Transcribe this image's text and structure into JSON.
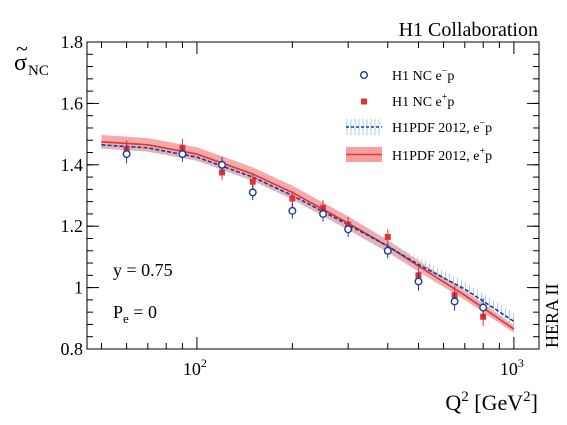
{
  "chart_data": {
    "type": "scatter",
    "title": "H1 Collaboration",
    "side_label": "HERA II",
    "ylabel_main": "σ",
    "ylabel_tilde": "~",
    "ylabel_sub": "NC",
    "xlabel_base": "Q",
    "xlabel_sup": "2",
    "xlabel_unit_open": "[GeV",
    "xlabel_unit_sup": "2",
    "xlabel_unit_close": "]",
    "xscale": "log",
    "xlim": [
      45,
      1200
    ],
    "ylim": [
      0.8,
      1.8
    ],
    "yticks": [
      0.8,
      1.0,
      1.2,
      1.4,
      1.6,
      1.8
    ],
    "ytick_labels": [
      "0.8",
      "1",
      "1.2",
      "1.4",
      "1.6",
      "1.8"
    ],
    "xticks": [
      100,
      1000
    ],
    "xtick_labels": [
      {
        "base": "10",
        "exp": "2"
      },
      {
        "base": "10",
        "exp": "3"
      }
    ],
    "annotations": {
      "y_text": "y  = 0.75",
      "pe_base": "P",
      "pe_sub": "e",
      "pe_rest": " = 0"
    },
    "legend_position": "top-right",
    "series": [
      {
        "name": "H1 NC e⁻p",
        "legend_base": "H1 NC e",
        "legend_sup": "−",
        "legend_rest": "p",
        "marker": "open-circle",
        "color": "#1f3a93",
        "points": [
          {
            "x": 60,
            "y": 1.435,
            "err": 0.03
          },
          {
            "x": 90,
            "y": 1.435,
            "err": 0.025
          },
          {
            "x": 120,
            "y": 1.4,
            "err": 0.025
          },
          {
            "x": 150,
            "y": 1.31,
            "err": 0.025
          },
          {
            "x": 200,
            "y": 1.25,
            "err": 0.025
          },
          {
            "x": 250,
            "y": 1.24,
            "err": 0.025
          },
          {
            "x": 300,
            "y": 1.19,
            "err": 0.025
          },
          {
            "x": 400,
            "y": 1.12,
            "err": 0.025
          },
          {
            "x": 500,
            "y": 1.02,
            "err": 0.03
          },
          {
            "x": 650,
            "y": 0.955,
            "err": 0.03
          },
          {
            "x": 800,
            "y": 0.935,
            "err": 0.03
          }
        ]
      },
      {
        "name": "H1 NC e⁺p",
        "legend_base": "H1 NC e",
        "legend_sup": "+",
        "legend_rest": "p",
        "marker": "filled-square",
        "color": "#e63232",
        "points": [
          {
            "x": 60,
            "y": 1.45,
            "err": 0.03
          },
          {
            "x": 90,
            "y": 1.455,
            "err": 0.03
          },
          {
            "x": 120,
            "y": 1.375,
            "err": 0.025
          },
          {
            "x": 150,
            "y": 1.345,
            "err": 0.025
          },
          {
            "x": 200,
            "y": 1.29,
            "err": 0.025
          },
          {
            "x": 250,
            "y": 1.26,
            "err": 0.025
          },
          {
            "x": 300,
            "y": 1.205,
            "err": 0.025
          },
          {
            "x": 400,
            "y": 1.165,
            "err": 0.025
          },
          {
            "x": 500,
            "y": 1.04,
            "err": 0.03
          },
          {
            "x": 650,
            "y": 0.975,
            "err": 0.03
          },
          {
            "x": 800,
            "y": 0.905,
            "err": 0.03
          }
        ]
      }
    ],
    "bands": [
      {
        "name": "H1PDF 2012, e⁻p",
        "legend_base": "H1PDF 2012, e",
        "legend_sup": "−",
        "legend_rest": "p",
        "style": "dashed-hatched",
        "color": "#1f3a93",
        "band_color": "#a9cfee",
        "points": [
          {
            "x": 50,
            "y": 1.465,
            "w": 0.012
          },
          {
            "x": 70,
            "y": 1.455,
            "w": 0.012
          },
          {
            "x": 100,
            "y": 1.425,
            "w": 0.013
          },
          {
            "x": 150,
            "y": 1.36,
            "w": 0.014
          },
          {
            "x": 200,
            "y": 1.3,
            "w": 0.015
          },
          {
            "x": 300,
            "y": 1.205,
            "w": 0.017
          },
          {
            "x": 400,
            "y": 1.135,
            "w": 0.019
          },
          {
            "x": 500,
            "y": 1.075,
            "w": 0.021
          },
          {
            "x": 700,
            "y": 0.995,
            "w": 0.024
          },
          {
            "x": 1000,
            "y": 0.89,
            "w": 0.027
          }
        ]
      },
      {
        "name": "H1PDF 2012, e⁺p",
        "legend_base": "H1PDF 2012, e",
        "legend_sup": "+",
        "legend_rest": "p",
        "style": "solid-filled",
        "color": "#e63232",
        "band_color": "#f5a0a0",
        "points": [
          {
            "x": 50,
            "y": 1.475,
            "w": 0.022
          },
          {
            "x": 70,
            "y": 1.465,
            "w": 0.022
          },
          {
            "x": 100,
            "y": 1.435,
            "w": 0.022
          },
          {
            "x": 150,
            "y": 1.37,
            "w": 0.022
          },
          {
            "x": 200,
            "y": 1.31,
            "w": 0.022
          },
          {
            "x": 300,
            "y": 1.21,
            "w": 0.022
          },
          {
            "x": 400,
            "y": 1.135,
            "w": 0.02
          },
          {
            "x": 500,
            "y": 1.07,
            "w": 0.018
          },
          {
            "x": 700,
            "y": 0.975,
            "w": 0.015
          },
          {
            "x": 1000,
            "y": 0.865,
            "w": 0.012
          }
        ]
      }
    ]
  }
}
